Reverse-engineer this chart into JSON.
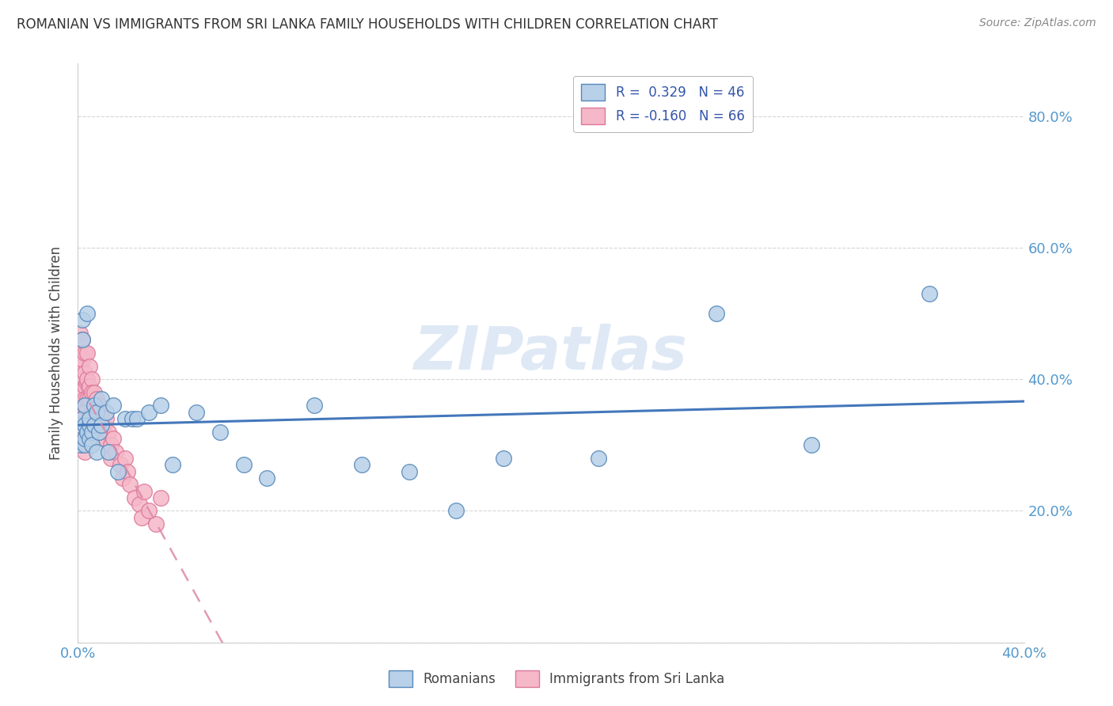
{
  "title": "ROMANIAN VS IMMIGRANTS FROM SRI LANKA FAMILY HOUSEHOLDS WITH CHILDREN CORRELATION CHART",
  "source": "Source: ZipAtlas.com",
  "ylabel": "Family Households with Children",
  "watermark": "ZIPatlas",
  "xlim": [
    0.0,
    0.4
  ],
  "ylim": [
    0.0,
    0.88
  ],
  "romanian_R": 0.329,
  "romanian_N": 46,
  "srilanka_R": -0.16,
  "srilanka_N": 66,
  "blue_fill": "#b8d0e8",
  "pink_fill": "#f5b8c8",
  "blue_edge": "#5588bb",
  "pink_edge": "#dd7799",
  "blue_line": "#4477bb",
  "pink_line": "#dd88aa",
  "tick_color": "#5599cc",
  "grid_color": "#cccccc",
  "romanians_label": "Romanians",
  "srilanka_label": "Immigrants from Sri Lanka",
  "romanian_x": [
    0.001,
    0.001,
    0.002,
    0.002,
    0.002,
    0.003,
    0.003,
    0.003,
    0.003,
    0.004,
    0.004,
    0.005,
    0.005,
    0.005,
    0.006,
    0.006,
    0.007,
    0.007,
    0.008,
    0.008,
    0.009,
    0.01,
    0.01,
    0.012,
    0.013,
    0.015,
    0.017,
    0.02,
    0.023,
    0.025,
    0.03,
    0.035,
    0.04,
    0.05,
    0.06,
    0.07,
    0.08,
    0.1,
    0.12,
    0.14,
    0.16,
    0.18,
    0.22,
    0.27,
    0.31,
    0.36
  ],
  "romanian_y": [
    0.33,
    0.3,
    0.49,
    0.46,
    0.34,
    0.36,
    0.33,
    0.3,
    0.31,
    0.5,
    0.32,
    0.33,
    0.31,
    0.34,
    0.32,
    0.3,
    0.36,
    0.33,
    0.35,
    0.29,
    0.32,
    0.37,
    0.33,
    0.35,
    0.29,
    0.36,
    0.26,
    0.34,
    0.34,
    0.34,
    0.35,
    0.36,
    0.27,
    0.35,
    0.32,
    0.27,
    0.25,
    0.36,
    0.27,
    0.26,
    0.2,
    0.28,
    0.28,
    0.5,
    0.3,
    0.53
  ],
  "srilanka_x": [
    0.001,
    0.001,
    0.001,
    0.001,
    0.001,
    0.001,
    0.001,
    0.002,
    0.002,
    0.002,
    0.002,
    0.002,
    0.002,
    0.002,
    0.002,
    0.003,
    0.003,
    0.003,
    0.003,
    0.003,
    0.003,
    0.003,
    0.003,
    0.004,
    0.004,
    0.004,
    0.004,
    0.005,
    0.005,
    0.005,
    0.005,
    0.005,
    0.006,
    0.006,
    0.006,
    0.006,
    0.007,
    0.007,
    0.007,
    0.007,
    0.008,
    0.008,
    0.008,
    0.009,
    0.009,
    0.01,
    0.011,
    0.011,
    0.012,
    0.013,
    0.014,
    0.014,
    0.015,
    0.016,
    0.018,
    0.019,
    0.02,
    0.021,
    0.022,
    0.024,
    0.026,
    0.027,
    0.028,
    0.03,
    0.033,
    0.035
  ],
  "srilanka_y": [
    0.47,
    0.44,
    0.43,
    0.42,
    0.38,
    0.36,
    0.33,
    0.46,
    0.43,
    0.4,
    0.38,
    0.36,
    0.34,
    0.32,
    0.3,
    0.44,
    0.41,
    0.39,
    0.37,
    0.35,
    0.33,
    0.31,
    0.29,
    0.44,
    0.4,
    0.37,
    0.34,
    0.42,
    0.39,
    0.37,
    0.34,
    0.32,
    0.4,
    0.38,
    0.35,
    0.33,
    0.38,
    0.36,
    0.34,
    0.32,
    0.37,
    0.34,
    0.31,
    0.36,
    0.33,
    0.35,
    0.33,
    0.31,
    0.34,
    0.32,
    0.3,
    0.28,
    0.31,
    0.29,
    0.27,
    0.25,
    0.28,
    0.26,
    0.24,
    0.22,
    0.21,
    0.19,
    0.23,
    0.2,
    0.18,
    0.22
  ]
}
